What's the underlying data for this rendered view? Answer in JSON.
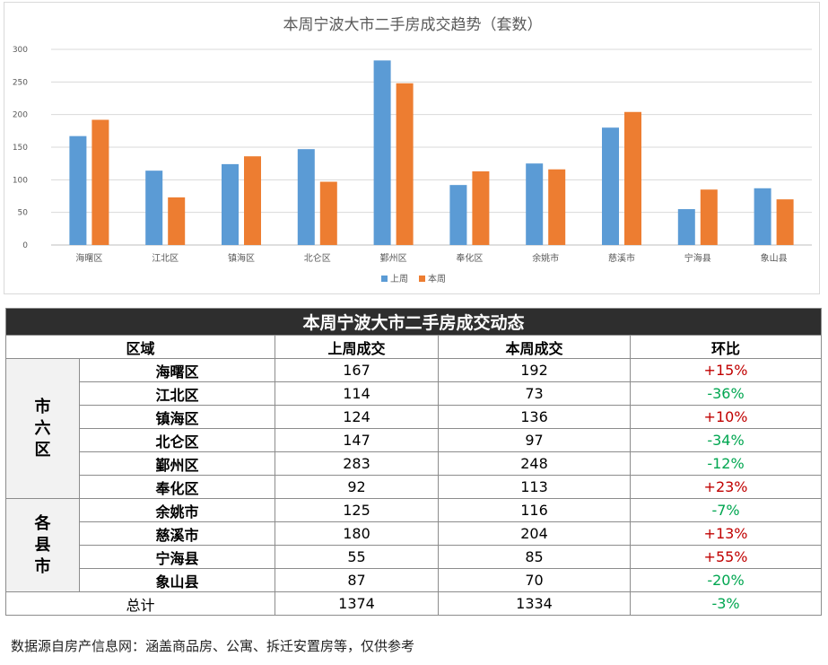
{
  "chart_data": {
    "type": "bar",
    "title": "本周宁波大市二手房成交趋势（套数）",
    "categories": [
      "海曙区",
      "江北区",
      "镇海区",
      "北仑区",
      "鄞州区",
      "奉化区",
      "余姚市",
      "慈溪市",
      "宁海县",
      "象山县"
    ],
    "series": [
      {
        "name": "上周",
        "color": "#5b9bd5",
        "values": [
          167,
          114,
          124,
          147,
          283,
          92,
          125,
          180,
          55,
          87
        ]
      },
      {
        "name": "本周",
        "color": "#ed7d31",
        "values": [
          192,
          73,
          136,
          97,
          248,
          113,
          116,
          204,
          85,
          70
        ]
      }
    ],
    "ylim": [
      0,
      300
    ],
    "yticks": [
      0,
      50,
      100,
      150,
      200,
      250,
      300
    ],
    "grid": true,
    "legend": "bottom"
  },
  "table": {
    "title": "本周宁波大市二手房成交动态",
    "headers": {
      "region": "区域",
      "last": "上周成交",
      "this": "本周成交",
      "ratio": "环比"
    },
    "groups": {
      "city": "市\n六\n区",
      "county": "各\n县\n市"
    },
    "rows": [
      {
        "name": "海曙区",
        "last": "167",
        "this": "192",
        "ratio": "+15%",
        "trend": "up"
      },
      {
        "name": "江北区",
        "last": "114",
        "this": "73",
        "ratio": "-36%",
        "trend": "down"
      },
      {
        "name": "镇海区",
        "last": "124",
        "this": "136",
        "ratio": "+10%",
        "trend": "up"
      },
      {
        "name": "北仑区",
        "last": "147",
        "this": "97",
        "ratio": "-34%",
        "trend": "down"
      },
      {
        "name": "鄞州区",
        "last": "283",
        "this": "248",
        "ratio": "-12%",
        "trend": "down"
      },
      {
        "name": "奉化区",
        "last": "92",
        "this": "113",
        "ratio": "+23%",
        "trend": "up"
      },
      {
        "name": "余姚市",
        "last": "125",
        "this": "116",
        "ratio": "-7%",
        "trend": "down"
      },
      {
        "name": "慈溪市",
        "last": "180",
        "this": "204",
        "ratio": "+13%",
        "trend": "up"
      },
      {
        "name": "宁海县",
        "last": "55",
        "this": "85",
        "ratio": "+55%",
        "trend": "up"
      },
      {
        "name": "象山县",
        "last": "87",
        "this": "70",
        "ratio": "-20%",
        "trend": "down"
      }
    ],
    "total": {
      "label": "总计",
      "last": "1374",
      "this": "1334",
      "ratio": "-3%",
      "trend": "down"
    },
    "colors": {
      "up": "#c00000",
      "down": "#00a650",
      "title_bg": "#2e2e2e",
      "group_bg": "#f2f2f2"
    }
  },
  "footer": {
    "source": "数据源自房产信息网：涵盖商品房、公寓、拆迁安置房等，仅供参考"
  }
}
